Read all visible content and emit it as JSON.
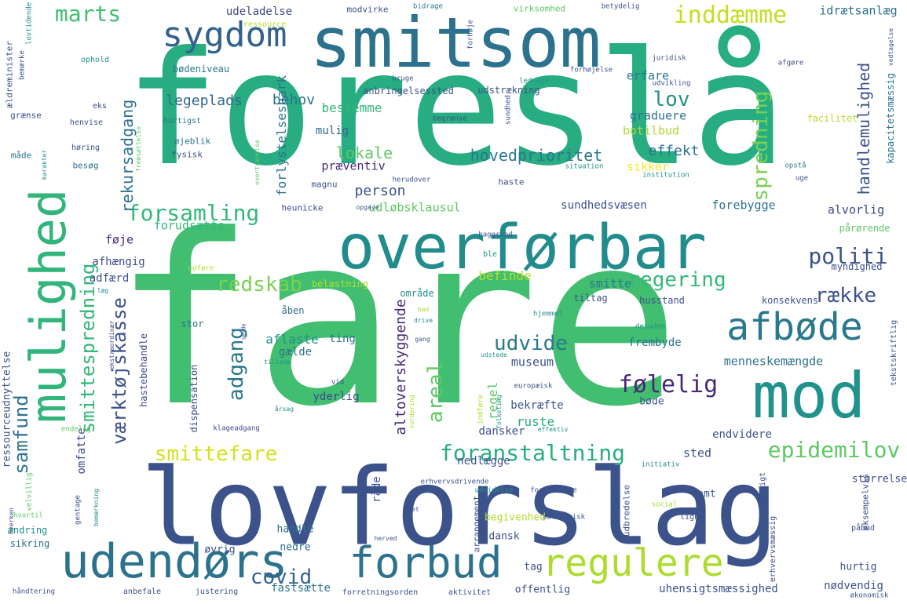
{
  "palette": {
    "background": "#ffffff",
    "colors": [
      "#440154",
      "#3b528b",
      "#21918c",
      "#27ad81",
      "#5ec962",
      "#addc30",
      "#fde725"
    ]
  },
  "words": [
    {
      "text": "foreslå",
      "color": "#27ad81"
    },
    {
      "text": "fare",
      "color": "#42be71"
    },
    {
      "text": "lovforslag",
      "color": "#3b528b"
    },
    {
      "text": "smitsom",
      "color": "#2c728e"
    },
    {
      "text": "overførbar",
      "color": "#228c8d"
    },
    {
      "text": "mod",
      "color": "#21918c"
    },
    {
      "text": "mulighed",
      "color": "#31b57b"
    },
    {
      "text": "udendørs",
      "color": "#2c728e"
    },
    {
      "text": "forbud",
      "color": "#2c728e"
    },
    {
      "text": "regulere",
      "color": "#addc30"
    },
    {
      "text": "sygdom",
      "color": "#33638d"
    },
    {
      "text": "afbøde",
      "color": "#2a788e"
    },
    {
      "text": "inddæmme",
      "color": "#c2df23"
    },
    {
      "text": "marts",
      "color": "#42be71"
    },
    {
      "text": "politi",
      "color": "#3b528b"
    },
    {
      "text": "regering",
      "color": "#35b779"
    },
    {
      "text": "række",
      "color": "#3b528b"
    },
    {
      "text": "forsamling",
      "color": "#35b779"
    },
    {
      "text": "redskab",
      "color": "#7ad151"
    },
    {
      "text": "udvide",
      "color": "#2a788e"
    },
    {
      "text": "følelig",
      "color": "#482878"
    },
    {
      "text": "epidemilov",
      "color": "#5ec962"
    },
    {
      "text": "foranstaltning",
      "color": "#27ad81"
    },
    {
      "text": "smittefare",
      "color": "#d2e21b"
    },
    {
      "text": "covid",
      "color": "#33638d"
    },
    {
      "text": "lov",
      "color": "#21918c"
    },
    {
      "text": "spredning",
      "color": "#7ad151"
    },
    {
      "text": "adgang",
      "color": "#2a788e"
    },
    {
      "text": "areal",
      "color": "#5ec962"
    },
    {
      "text": "smittespredning",
      "color": "#35b779"
    },
    {
      "text": "værktøjskasse",
      "color": "#3b528b"
    },
    {
      "text": "samfund",
      "color": "#2c728e"
    },
    {
      "text": "handlemulighed",
      "color": "#3b528b"
    },
    {
      "text": "rekursadgang",
      "color": "#2c728e"
    },
    {
      "text": "hovedprioritet",
      "color": "#2a788e"
    },
    {
      "text": "lokale",
      "color": "#5ec962"
    },
    {
      "text": "legeplads",
      "color": "#31688e"
    },
    {
      "text": "behov",
      "color": "#2c728e"
    },
    {
      "text": "effekt",
      "color": "#2c728e"
    },
    {
      "text": "altoverskyggende",
      "color": "#482878"
    },
    {
      "text": "person",
      "color": "#3b528b"
    },
    {
      "text": "udeladelse",
      "color": "#3e4a89"
    },
    {
      "text": "idrætsanlæg",
      "color": "#2c728e"
    },
    {
      "text": "bestemme",
      "color": "#35b779"
    },
    {
      "text": "mulig",
      "color": "#31688e"
    },
    {
      "text": "graduere",
      "color": "#2c728e"
    },
    {
      "text": "erfare",
      "color": "#2a788e"
    },
    {
      "text": "botilbud",
      "color": "#addc30"
    },
    {
      "text": "forlystelsespark",
      "color": "#2c728e"
    },
    {
      "text": "sikker",
      "color": "#fde725"
    },
    {
      "text": "præventiv",
      "color": "#482878"
    },
    {
      "text": "udløbsklausul",
      "color": "#5ec962"
    },
    {
      "text": "alvorlig",
      "color": "#3e4a89"
    },
    {
      "text": "forebygge",
      "color": "#2c728e"
    },
    {
      "text": "sundhedsvæsen",
      "color": "#3b528b"
    },
    {
      "text": "befinde",
      "color": "#b5de2b"
    },
    {
      "text": "smitte",
      "color": "#2a788e"
    },
    {
      "text": "aflaste",
      "color": "#21918c"
    },
    {
      "text": "menneskemængde",
      "color": "#2c728e"
    },
    {
      "text": "regel",
      "color": "#5ec962"
    },
    {
      "text": "ruste",
      "color": "#27ad81"
    },
    {
      "text": "forudsætte",
      "color": "#35b779"
    },
    {
      "text": "føje",
      "color": "#482878"
    },
    {
      "text": "afhængig",
      "color": "#3e4a89"
    },
    {
      "text": "adfærd",
      "color": "#3b528b"
    },
    {
      "text": "omfatte",
      "color": "#3e4a89"
    },
    {
      "text": "sted",
      "color": "#3b528b"
    },
    {
      "text": "museum",
      "color": "#3b528b"
    },
    {
      "text": "ting",
      "color": "#2c728e"
    },
    {
      "text": "gælde",
      "color": "#2c728e"
    },
    {
      "text": "yderlig",
      "color": "#3e4a89"
    },
    {
      "text": "frembyde",
      "color": "#2c728e"
    },
    {
      "text": "bekræfte",
      "color": "#3b528b"
    },
    {
      "text": "dansker",
      "color": "#3b528b"
    },
    {
      "text": "bøde",
      "color": "#3b528b"
    },
    {
      "text": "endvidere",
      "color": "#3b528b"
    },
    {
      "text": "nedlægge",
      "color": "#3b528b"
    },
    {
      "text": "råde",
      "color": "#3b528b"
    },
    {
      "text": "størrelse",
      "color": "#3e4a89"
    },
    {
      "text": "samt",
      "color": "#3b528b"
    },
    {
      "text": "handle",
      "color": "#2c728e"
    },
    {
      "text": "nedre",
      "color": "#2c728e"
    },
    {
      "text": "øvrig",
      "color": "#3e4a89"
    },
    {
      "text": "dansk",
      "color": "#3b528b"
    },
    {
      "text": "begivenhed",
      "color": "#addc30"
    },
    {
      "text": "tag",
      "color": "#3b528b"
    },
    {
      "text": "offentlig",
      "color": "#3b528b"
    },
    {
      "text": "uhensigtsmæssighed",
      "color": "#3b528b"
    },
    {
      "text": "nødvendig",
      "color": "#3b528b"
    },
    {
      "text": "hurtig",
      "color": "#3b528b"
    },
    {
      "text": "fastsætte",
      "color": "#2c728e"
    },
    {
      "text": "sikring",
      "color": "#2c728e"
    },
    {
      "text": "ændring",
      "color": "#21918c"
    },
    {
      "text": "ressourceudnyttelse",
      "color": "#3b528b"
    },
    {
      "text": "hastebehandle",
      "color": "#3e4a89"
    },
    {
      "text": "dispensation",
      "color": "#3e4a89"
    },
    {
      "text": "stor",
      "color": "#2c728e"
    },
    {
      "text": "åben",
      "color": "#2c728e"
    },
    {
      "text": "område",
      "color": "#21918c"
    },
    {
      "text": "husstand",
      "color": "#3b528b"
    },
    {
      "text": "myndighed",
      "color": "#3b528b"
    },
    {
      "text": "tiltag",
      "color": "#3b528b"
    },
    {
      "text": "konsekvens",
      "color": "#3b528b"
    },
    {
      "text": "belastning",
      "color": "#b5de2b"
    },
    {
      "text": "pårørende",
      "color": "#5ec962"
    },
    {
      "text": "kapacitetsmæssig",
      "color": "#2c728e"
    },
    {
      "text": "facilitet",
      "color": "#b5de2b"
    },
    {
      "text": "udstrækning",
      "color": "#3b528b"
    },
    {
      "text": "anbringelsessted",
      "color": "#3b528b"
    },
    {
      "text": "bødeniveau",
      "color": "#2a788e"
    },
    {
      "text": "grænse",
      "color": "#3b528b"
    },
    {
      "text": "måde",
      "color": "#2c728e"
    },
    {
      "text": "besøg",
      "color": "#2c728e"
    },
    {
      "text": "øjeblik",
      "color": "#2c728e"
    },
    {
      "text": "fysisk",
      "color": "#3b528b"
    },
    {
      "text": "hurtigst",
      "color": "#2a788e"
    },
    {
      "text": "henvise",
      "color": "#3b528b"
    },
    {
      "text": "høring",
      "color": "#3b528b"
    },
    {
      "text": "eks",
      "color": "#3e4a89"
    },
    {
      "text": "ophold",
      "color": "#21918c"
    },
    {
      "text": "ressource",
      "color": "#b5de2b"
    },
    {
      "text": "modvirke",
      "color": "#3b528b"
    },
    {
      "text": "bidrage",
      "color": "#2a788e"
    },
    {
      "text": "virksomhed",
      "color": "#5ec962"
    },
    {
      "text": "betydelig",
      "color": "#3b528b"
    },
    {
      "text": "forhøje",
      "color": "#3b528b"
    },
    {
      "text": "juridisk",
      "color": "#3b528b"
    },
    {
      "text": "afgøre",
      "color": "#3e4a89"
    },
    {
      "text": "udvikling",
      "color": "#3b528b"
    },
    {
      "text": "forhøjelse",
      "color": "#3b528b"
    },
    {
      "text": "ledsage",
      "color": "#21918c"
    },
    {
      "text": "bruge",
      "color": "#3b528b"
    },
    {
      "text": "sundhed",
      "color": "#3b528b"
    },
    {
      "text": "begrænse",
      "color": "#3b528b"
    },
    {
      "text": "situation",
      "color": "#21918c"
    },
    {
      "text": "institution",
      "color": "#21918c"
    },
    {
      "text": "opstå",
      "color": "#2a788e"
    },
    {
      "text": "uge",
      "color": "#3b528b"
    },
    {
      "text": "haste",
      "color": "#3b528b"
    },
    {
      "text": "magnu",
      "color": "#3b528b"
    },
    {
      "text": "herudover",
      "color": "#3b528b"
    },
    {
      "text": "opgave",
      "color": "#3b528b"
    },
    {
      "text": "heunicke",
      "color": "#3b528b"
    },
    {
      "text": "baggrund",
      "color": "#3b528b"
    },
    {
      "text": "ble",
      "color": "#21918c"
    },
    {
      "text": "udføre",
      "color": "#b5de2b"
    },
    {
      "text": "læg",
      "color": "#21918c"
    },
    {
      "text": "bad",
      "color": "#addc30"
    },
    {
      "text": "drive",
      "color": "#21918c"
    },
    {
      "text": "sende",
      "color": "#3b528b"
    },
    {
      "text": "hjemmel",
      "color": "#21918c"
    },
    {
      "text": "desuden",
      "color": "#21918c"
    },
    {
      "text": "gang",
      "color": "#3b528b"
    },
    {
      "text": "udstede",
      "color": "#21918c"
    },
    {
      "text": "tillade",
      "color": "#21918c"
    },
    {
      "text": "europæisk",
      "color": "#3b528b"
    },
    {
      "text": "vid",
      "color": "#3b528b"
    },
    {
      "text": "indføre",
      "color": "#addc30"
    },
    {
      "text": "folketing",
      "color": "#21918c"
    },
    {
      "text": "vurdering",
      "color": "#addc30"
    },
    {
      "text": "årsag",
      "color": "#21918c"
    },
    {
      "text": "klageadgang",
      "color": "#3e4a89"
    },
    {
      "text": "effektiv",
      "color": "#21918c"
    },
    {
      "text": "endelig",
      "color": "#5ec962"
    },
    {
      "text": "erhvervsdrivende",
      "color": "#3b528b"
    },
    {
      "text": "udvidelse",
      "color": "#21918c"
    },
    {
      "text": "forbindelse",
      "color": "#3b528b"
    },
    {
      "text": "initiativ",
      "color": "#21918c"
    },
    {
      "text": "udbredelse",
      "color": "#3b528b"
    },
    {
      "text": "almindelig",
      "color": "#3b528b"
    },
    {
      "text": "erhvervsmæssigt",
      "color": "#3b528b"
    },
    {
      "text": "eksempelvis",
      "color": "#3b528b"
    },
    {
      "text": "automatisk",
      "color": "#3b528b"
    },
    {
      "text": "social",
      "color": "#addc30"
    },
    {
      "text": "ligne",
      "color": "#3b528b"
    },
    {
      "text": "påbud",
      "color": "#3b528b"
    },
    {
      "text": "idet",
      "color": "#3b528b"
    },
    {
      "text": "arrangement",
      "color": "#3b528b"
    },
    {
      "text": "herved",
      "color": "#3b528b"
    },
    {
      "text": "erhvervsmæssig",
      "color": "#3e4a89"
    },
    {
      "text": "gentage",
      "color": "#3b528b"
    },
    {
      "text": "bemærkning",
      "color": "#21918c"
    },
    {
      "text": "hvortil",
      "color": "#5ec962"
    },
    {
      "text": "velvillig",
      "color": "#5ec962"
    },
    {
      "text": "hverken",
      "color": "#3e4a89"
    },
    {
      "text": "ekstraordinær",
      "color": "#3e4a89"
    },
    {
      "text": "håndtering",
      "color": "#3b528b"
    },
    {
      "text": "anbefale",
      "color": "#3b528b"
    },
    {
      "text": "justering",
      "color": "#3b528b"
    },
    {
      "text": "forretningsorden",
      "color": "#3b528b"
    },
    {
      "text": "aktivitet",
      "color": "#3b528b"
    },
    {
      "text": "økonomisk",
      "color": "#3b528b"
    },
    {
      "text": "tekstskriftlig",
      "color": "#3b528b"
    },
    {
      "text": "vedtagelse",
      "color": "#3b528b"
    },
    {
      "text": "ældreminister",
      "color": "#3b528b"
    },
    {
      "text": "bemærke",
      "color": "#3b528b"
    },
    {
      "text": "lovtidende",
      "color": "#21918c"
    },
    {
      "text": "karakter",
      "color": "#21918c"
    },
    {
      "text": "fremsættelse",
      "color": "#5ec962"
    },
    {
      "text": "overtrædelse",
      "color": "#5ec962"
    }
  ]
}
